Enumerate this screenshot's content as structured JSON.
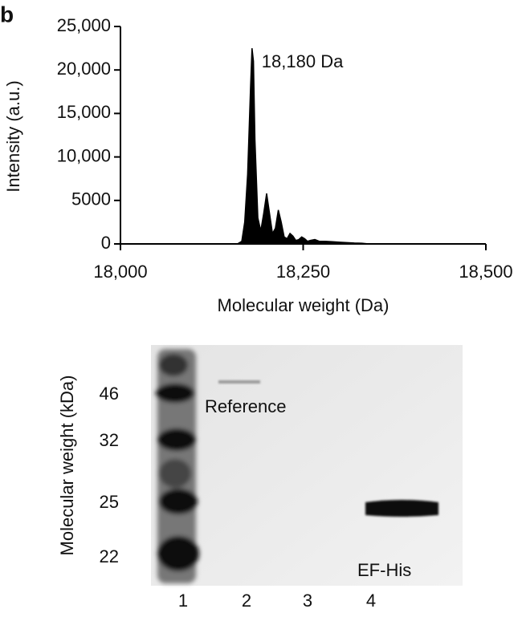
{
  "panel_label": "b",
  "chart_data": {
    "type": "area",
    "annotation": "18,180 Da",
    "x_label": "Molecular weight (Da)",
    "y_label": "Intensity (a.u.)",
    "color": "#000000",
    "x": [
      18160,
      18166,
      18170,
      18174,
      18178,
      18180,
      18182,
      18184,
      18188,
      18192,
      18196,
      18200,
      18204,
      18208,
      18212,
      18216,
      18220,
      18224,
      18228,
      18232,
      18236,
      18240,
      18244,
      18248,
      18252,
      18256,
      18260,
      18266,
      18272,
      18280,
      18290,
      18300,
      18310,
      18320,
      18330,
      18340
    ],
    "values": [
      0,
      300,
      2500,
      8000,
      18000,
      22500,
      21000,
      12000,
      3000,
      1500,
      3500,
      5800,
      3500,
      1200,
      1800,
      3900,
      2500,
      800,
      600,
      1200,
      900,
      400,
      500,
      800,
      600,
      300,
      400,
      500,
      300,
      300,
      250,
      200,
      150,
      100,
      80,
      0
    ],
    "xlim": [
      18000,
      18500
    ],
    "xticks": [
      {
        "value": 18000,
        "label": "18,000"
      },
      {
        "value": 18250,
        "label": "18,250"
      },
      {
        "value": 18500,
        "label": "18,500"
      }
    ],
    "ylim": [
      0,
      25000
    ],
    "yticks": [
      0,
      5000,
      {
        "value": 10000,
        "label": "10,000"
      },
      {
        "value": 15000,
        "label": "15,000"
      },
      {
        "value": 20000,
        "label": "20,000"
      },
      {
        "value": 25000,
        "label": "25,000"
      }
    ]
  },
  "gel": {
    "y_label": "Molecular weight (kDa)",
    "markers": [
      "46",
      "32",
      "25",
      "22"
    ],
    "lanes": [
      "1",
      "2",
      "3",
      "4"
    ],
    "band_labels": [
      "Reference",
      "EF-His"
    ]
  }
}
